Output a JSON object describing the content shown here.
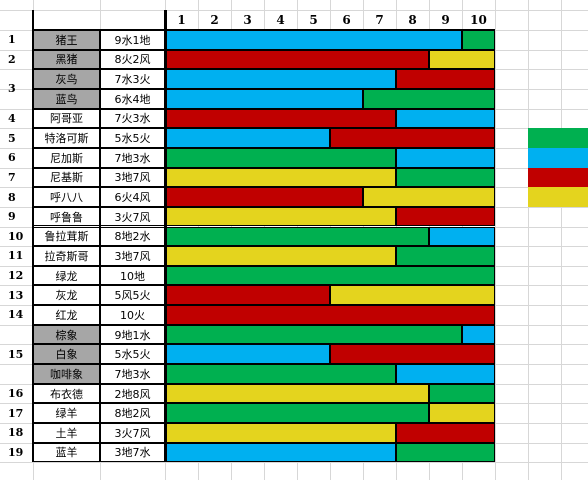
{
  "colors": {
    "blue": "#00b0f0",
    "green": "#00b050",
    "red": "#c00000",
    "yellow": "#e4d41e"
  },
  "header": [
    "1",
    "2",
    "3",
    "4",
    "5",
    "6",
    "7",
    "8",
    "9",
    "10"
  ],
  "groups": [
    {
      "index": "1",
      "span": 1
    },
    {
      "index": "2",
      "span": 1
    },
    {
      "index": "3",
      "span": 2
    },
    {
      "index": "4",
      "span": 1
    },
    {
      "index": "5",
      "span": 1
    },
    {
      "index": "6",
      "span": 1
    },
    {
      "index": "7",
      "span": 1
    },
    {
      "index": "8",
      "span": 1
    },
    {
      "index": "9",
      "span": 1
    },
    {
      "index": "10",
      "span": 1
    },
    {
      "index": "11",
      "span": 1
    },
    {
      "index": "12",
      "span": 1
    },
    {
      "index": "13",
      "span": 1
    },
    {
      "index": "14",
      "span": 1
    },
    {
      "index": "15",
      "span": 3
    },
    {
      "index": "16",
      "span": 1
    },
    {
      "index": "17",
      "span": 1
    },
    {
      "index": "18",
      "span": 1
    },
    {
      "index": "19",
      "span": 1
    }
  ],
  "rows": [
    {
      "name": "猪王",
      "value": "9水1地",
      "gray": true,
      "segments": [
        [
          "blue",
          9
        ],
        [
          "green",
          1
        ]
      ]
    },
    {
      "name": "黑猪",
      "value": "8火2风",
      "gray": true,
      "segments": [
        [
          "red",
          8
        ],
        [
          "yellow",
          2
        ]
      ]
    },
    {
      "name": "灰鸟",
      "value": "7水3火",
      "gray": true,
      "segments": [
        [
          "blue",
          7
        ],
        [
          "red",
          3
        ]
      ]
    },
    {
      "name": "蓝鸟",
      "value": "6水4地",
      "gray": true,
      "segments": [
        [
          "blue",
          6
        ],
        [
          "green",
          4
        ]
      ]
    },
    {
      "name": "阿哥亚",
      "value": "7火3水",
      "gray": false,
      "segments": [
        [
          "red",
          7
        ],
        [
          "blue",
          3
        ]
      ]
    },
    {
      "name": "特洛可斯",
      "value": "5水5火",
      "gray": false,
      "segments": [
        [
          "blue",
          5
        ],
        [
          "red",
          5
        ]
      ]
    },
    {
      "name": "尼加斯",
      "value": "7地3水",
      "gray": false,
      "segments": [
        [
          "green",
          7
        ],
        [
          "blue",
          3
        ]
      ]
    },
    {
      "name": "尼基斯",
      "value": "3地7风",
      "gray": false,
      "segments": [
        [
          "yellow",
          7
        ],
        [
          "green",
          3
        ]
      ]
    },
    {
      "name": "呼八八",
      "value": "6火4风",
      "gray": false,
      "segments": [
        [
          "red",
          6
        ],
        [
          "yellow",
          4
        ]
      ]
    },
    {
      "name": "呼鲁鲁",
      "value": "3火7风",
      "gray": false,
      "segments": [
        [
          "yellow",
          7
        ],
        [
          "red",
          3
        ]
      ]
    },
    {
      "name": "鲁拉茸斯",
      "value": "8地2水",
      "gray": false,
      "segments": [
        [
          "green",
          8
        ],
        [
          "blue",
          2
        ]
      ]
    },
    {
      "name": "拉奇斯哥",
      "value": "3地7风",
      "gray": false,
      "segments": [
        [
          "yellow",
          7
        ],
        [
          "green",
          3
        ]
      ]
    },
    {
      "name": "绿龙",
      "value": "10地",
      "gray": false,
      "segments": [
        [
          "green",
          10
        ]
      ]
    },
    {
      "name": "灰龙",
      "value": "5风5火",
      "gray": false,
      "segments": [
        [
          "red",
          5
        ],
        [
          "yellow",
          5
        ]
      ]
    },
    {
      "name": "红龙",
      "value": "10火",
      "gray": false,
      "segments": [
        [
          "red",
          10
        ]
      ]
    },
    {
      "name": "棕象",
      "value": "9地1水",
      "gray": true,
      "segments": [
        [
          "green",
          9
        ],
        [
          "blue",
          1
        ]
      ]
    },
    {
      "name": "白象",
      "value": "5水5火",
      "gray": true,
      "segments": [
        [
          "blue",
          5
        ],
        [
          "red",
          5
        ]
      ]
    },
    {
      "name": "咖啡象",
      "value": "7地3水",
      "gray": true,
      "segments": [
        [
          "green",
          7
        ],
        [
          "blue",
          3
        ]
      ]
    },
    {
      "name": "布衣德",
      "value": "2地8风",
      "gray": false,
      "segments": [
        [
          "yellow",
          8
        ],
        [
          "green",
          2
        ]
      ]
    },
    {
      "name": "绿羊",
      "value": "8地2风",
      "gray": false,
      "segments": [
        [
          "green",
          8
        ],
        [
          "yellow",
          2
        ]
      ]
    },
    {
      "name": "土羊",
      "value": "3火7风",
      "gray": false,
      "segments": [
        [
          "yellow",
          7
        ],
        [
          "red",
          3
        ]
      ]
    },
    {
      "name": "蓝羊",
      "value": "3地7水",
      "gray": false,
      "segments": [
        [
          "blue",
          7
        ],
        [
          "green",
          3
        ]
      ]
    }
  ],
  "legend": [
    "green",
    "blue",
    "red",
    "yellow"
  ]
}
